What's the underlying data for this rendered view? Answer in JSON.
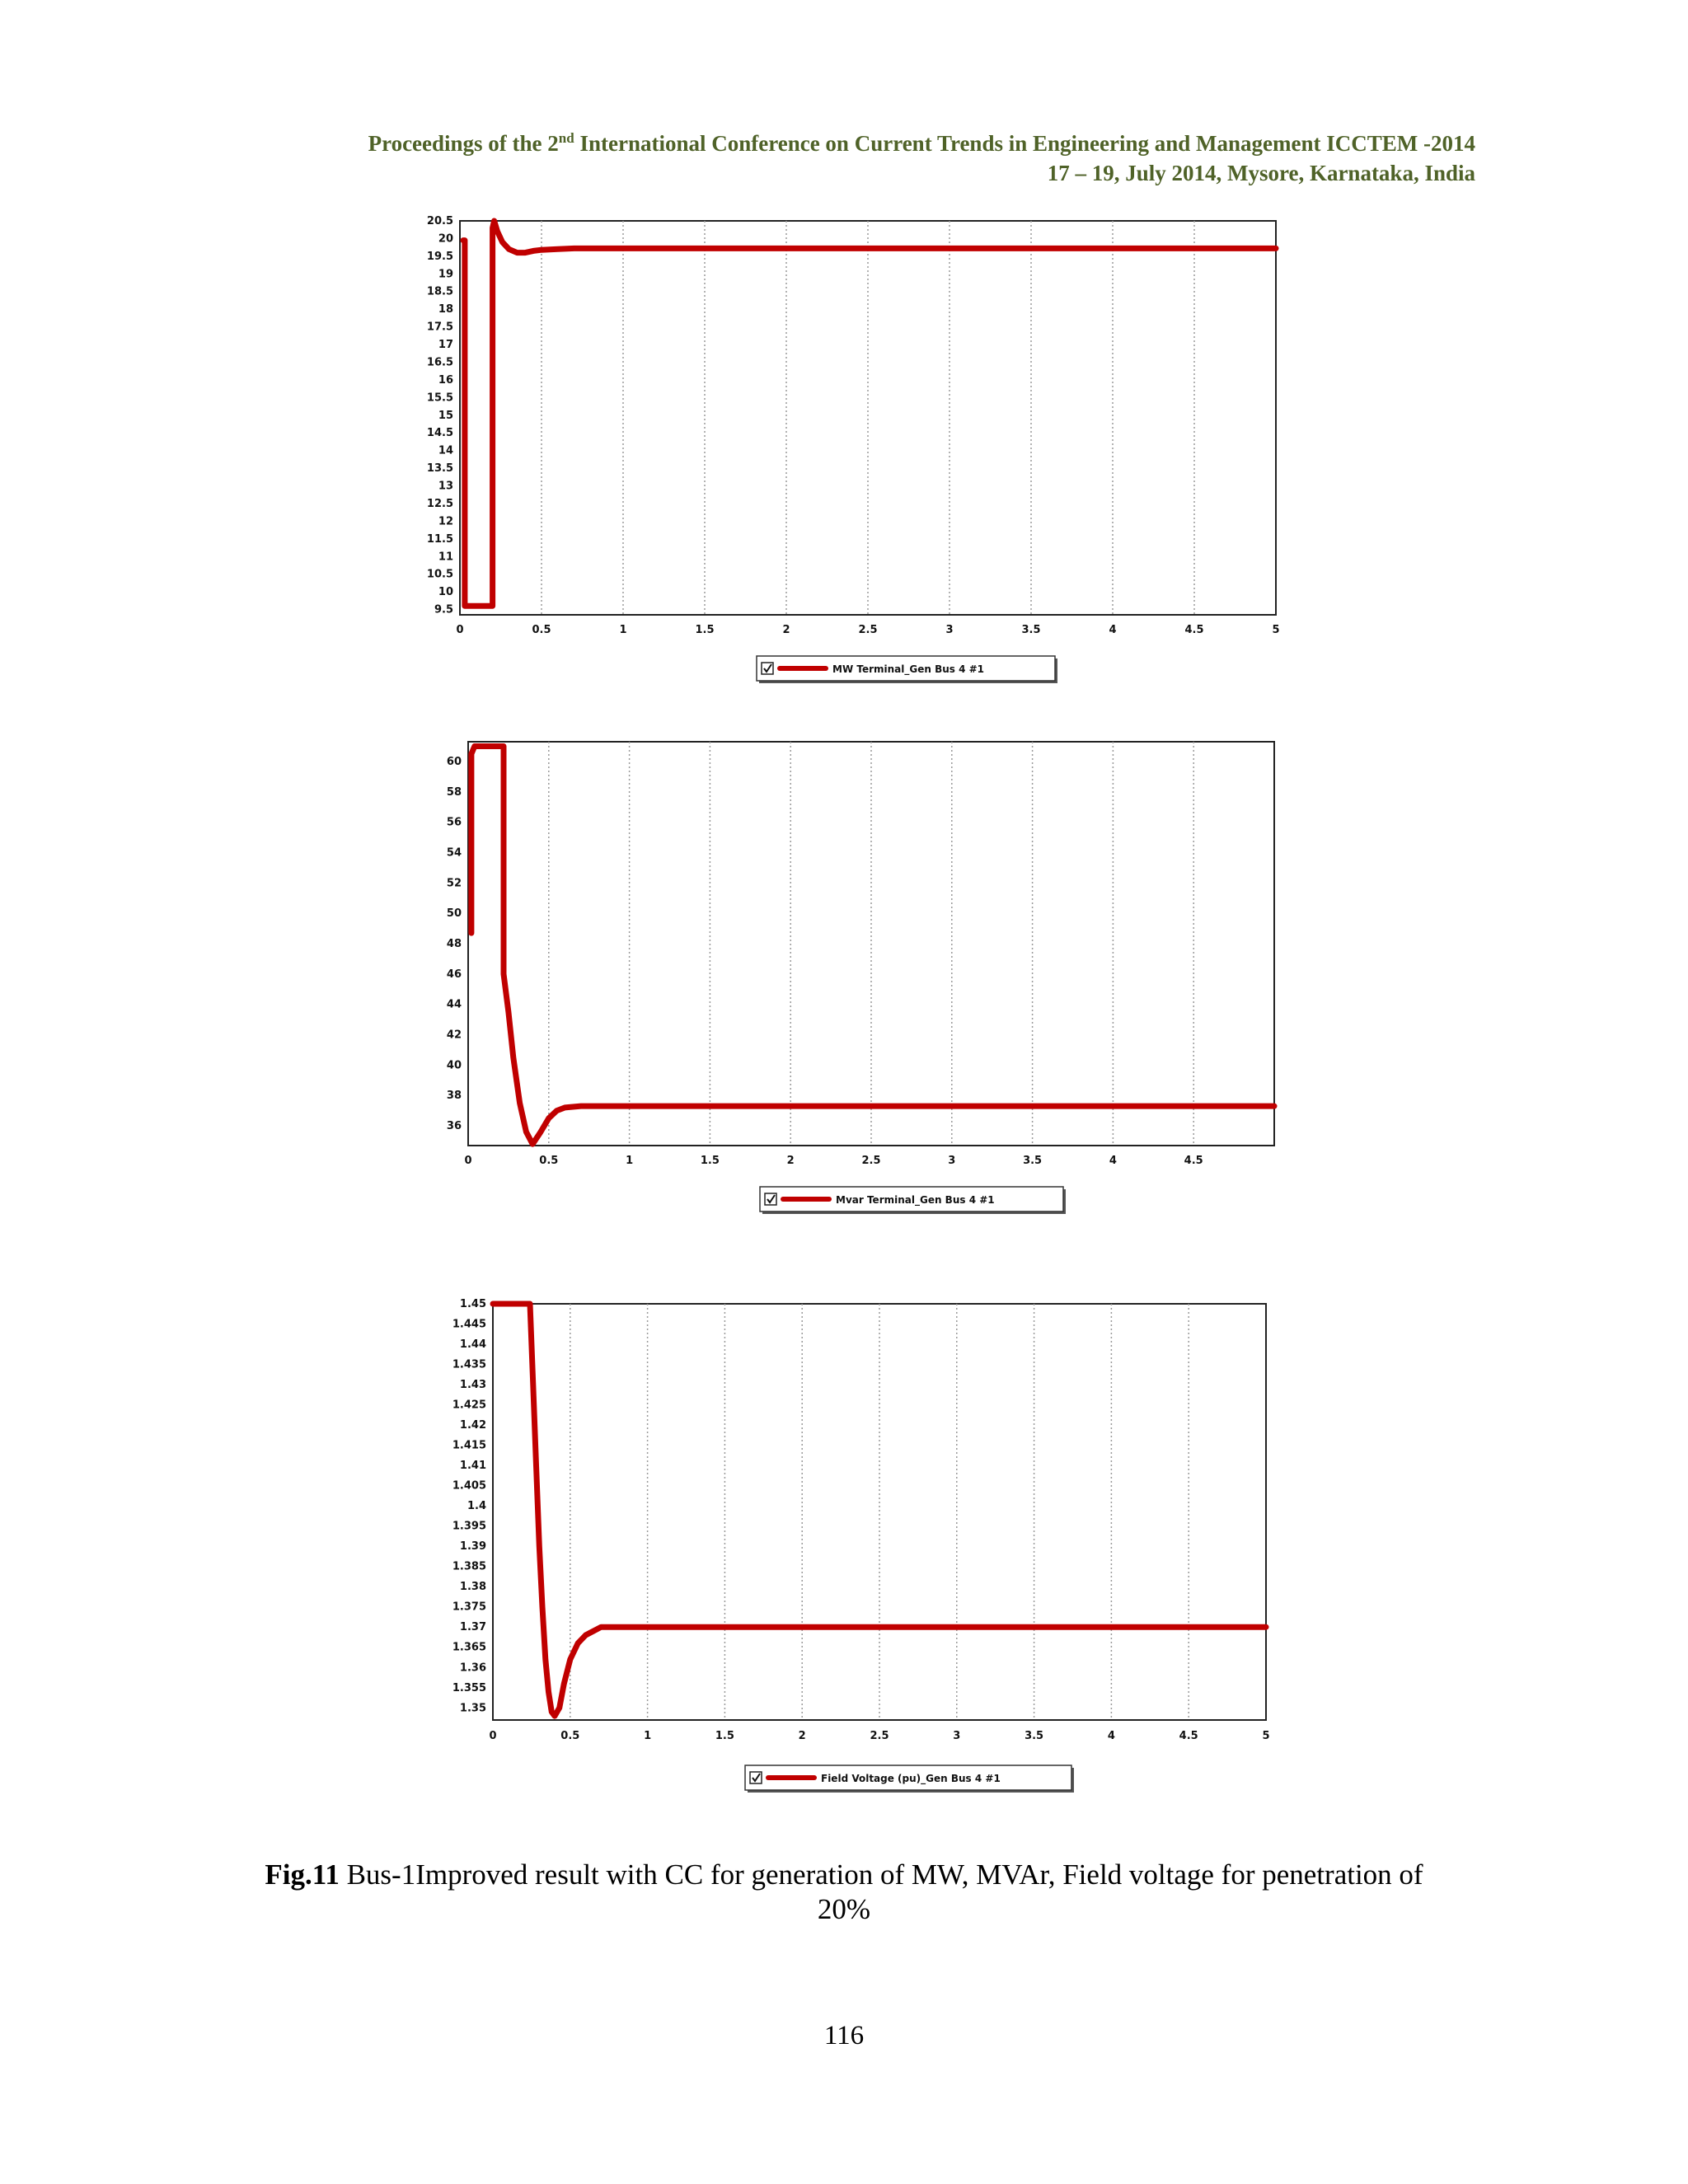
{
  "header": {
    "line1_pre": "Proceedings of the 2",
    "line1_sup": "nd",
    "line1_post": " International Conference on Current Trends in Engineering and Management ICCTEM -2014",
    "line2": "17 – 19, July 2014, Mysore, Karnataka, India"
  },
  "chart_data": [
    {
      "type": "line",
      "yticks": [
        "20.5",
        "20",
        "19.5",
        "19",
        "18.5",
        "18",
        "17.5",
        "17",
        "16.5",
        "16",
        "15.5",
        "15",
        "14.5",
        "14",
        "13.5",
        "13",
        "12.5",
        "12",
        "11.5",
        "11",
        "10.5",
        "10",
        "9.5"
      ],
      "xticks": [
        "0",
        "0.5",
        "1",
        "1.5",
        "2",
        "2.5",
        "3",
        "3.5",
        "4",
        "4.5",
        "5"
      ],
      "xlim": [
        0,
        5
      ],
      "ylim": [
        9.35,
        20.5
      ],
      "grid": true,
      "color": "#c00000",
      "series": [
        {
          "name": "MW Terminal_Gen Bus 4 #1",
          "x": [
            0.02,
            0.02,
            0.03,
            0.03,
            0.2,
            0.2,
            0.21,
            0.23,
            0.26,
            0.3,
            0.35,
            0.4,
            0.45,
            0.5,
            0.6,
            0.7,
            0.8,
            1.0,
            2.0,
            3.0,
            4.0,
            5.0
          ],
          "y": [
            19.95,
            19.95,
            19.95,
            9.6,
            9.6,
            20.3,
            20.5,
            20.2,
            19.9,
            19.7,
            19.6,
            19.6,
            19.65,
            19.68,
            19.7,
            19.72,
            19.72,
            19.72,
            19.72,
            19.72,
            19.72,
            19.72
          ]
        }
      ]
    },
    {
      "type": "line",
      "yticks": [
        "60",
        "58",
        "56",
        "54",
        "52",
        "50",
        "48",
        "46",
        "44",
        "42",
        "40",
        "38",
        "36"
      ],
      "xticks": [
        "0",
        "0.5",
        "1",
        "1.5",
        "2",
        "2.5",
        "3",
        "3.5",
        "4",
        "4.5"
      ],
      "xlim": [
        0,
        5
      ],
      "ylim": [
        34.7,
        61.3
      ],
      "grid": true,
      "color": "#c00000",
      "series": [
        {
          "name": "Mvar Terminal_Gen Bus 4 #1",
          "x": [
            0.02,
            0.02,
            0.04,
            0.22,
            0.22,
            0.25,
            0.28,
            0.32,
            0.36,
            0.4,
            0.45,
            0.5,
            0.55,
            0.6,
            0.7,
            0.8,
            1.0,
            2.0,
            3.0,
            4.0,
            5.0
          ],
          "y": [
            48.7,
            60.5,
            61.0,
            61.0,
            46.0,
            43.5,
            40.5,
            37.5,
            35.6,
            34.8,
            35.6,
            36.5,
            37.0,
            37.2,
            37.3,
            37.3,
            37.3,
            37.3,
            37.3,
            37.3,
            37.3
          ]
        }
      ]
    },
    {
      "type": "line",
      "yticks": [
        "1.45",
        "1.445",
        "1.44",
        "1.435",
        "1.43",
        "1.425",
        "1.42",
        "1.415",
        "1.41",
        "1.405",
        "1.4",
        "1.395",
        "1.39",
        "1.385",
        "1.38",
        "1.375",
        "1.37",
        "1.365",
        "1.36",
        "1.355",
        "1.35"
      ],
      "xticks": [
        "0",
        "0.5",
        "1",
        "1.5",
        "2",
        "2.5",
        "3",
        "3.5",
        "4",
        "4.5",
        "5"
      ],
      "xlim": [
        0,
        5
      ],
      "ylim": [
        1.347,
        1.45
      ],
      "grid": true,
      "color": "#c00000",
      "series": [
        {
          "name": "Field Voltage (pu)_Gen Bus 4 #1",
          "x": [
            0.0,
            0.24,
            0.26,
            0.28,
            0.3,
            0.32,
            0.34,
            0.36,
            0.38,
            0.4,
            0.43,
            0.46,
            0.5,
            0.55,
            0.6,
            0.65,
            0.7,
            0.8,
            1.0,
            2.0,
            3.0,
            4.0,
            5.0
          ],
          "y": [
            1.45,
            1.45,
            1.43,
            1.41,
            1.39,
            1.375,
            1.362,
            1.354,
            1.349,
            1.348,
            1.35,
            1.356,
            1.362,
            1.366,
            1.368,
            1.369,
            1.37,
            1.37,
            1.37,
            1.37,
            1.37,
            1.37,
            1.37
          ]
        }
      ]
    }
  ],
  "caption": {
    "label": "Fig.11",
    "text_line1": " Bus-1Improved result with CC for generation of MW, MVAr, Field voltage for penetration of",
    "text_line2": "20%"
  },
  "page_number": "116"
}
